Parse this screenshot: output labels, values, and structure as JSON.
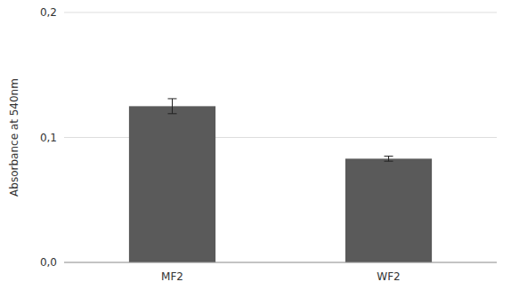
{
  "chart_data": {
    "type": "bar",
    "ylabel": "Absorbance at 540nm",
    "categories": [
      "MF2",
      "WF2"
    ],
    "values": [
      0.125,
      0.083
    ],
    "errors": [
      0.006,
      0.002
    ],
    "color": "#5a5a5a",
    "ylim": [
      0.0,
      0.2
    ],
    "yticks": [
      {
        "value": 0.0,
        "label": "0,0"
      },
      {
        "value": 0.1,
        "label": "0,1"
      },
      {
        "value": 0.2,
        "label": "0,2"
      }
    ],
    "grid": true
  }
}
